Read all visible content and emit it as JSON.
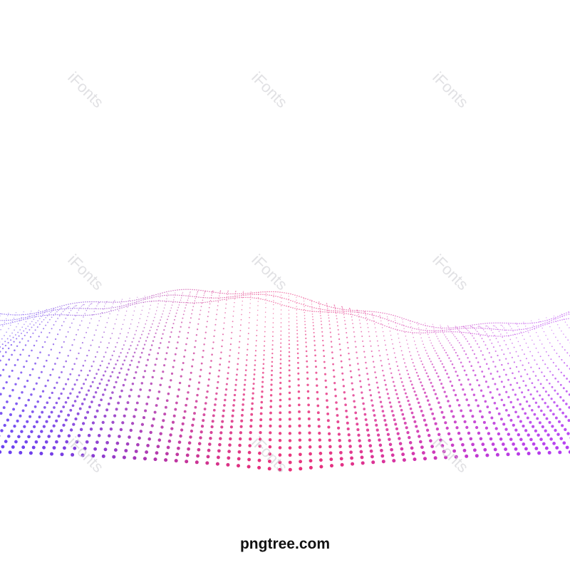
{
  "image": {
    "subject": "dotted particle wave",
    "background_color": "#ffffff",
    "colors": {
      "left": "#6a3ff0",
      "center": "#e8307a",
      "right": "#b43cf0"
    }
  },
  "watermarks": {
    "text": "iFonts"
  },
  "brand": {
    "text": "pngtree.com"
  }
}
